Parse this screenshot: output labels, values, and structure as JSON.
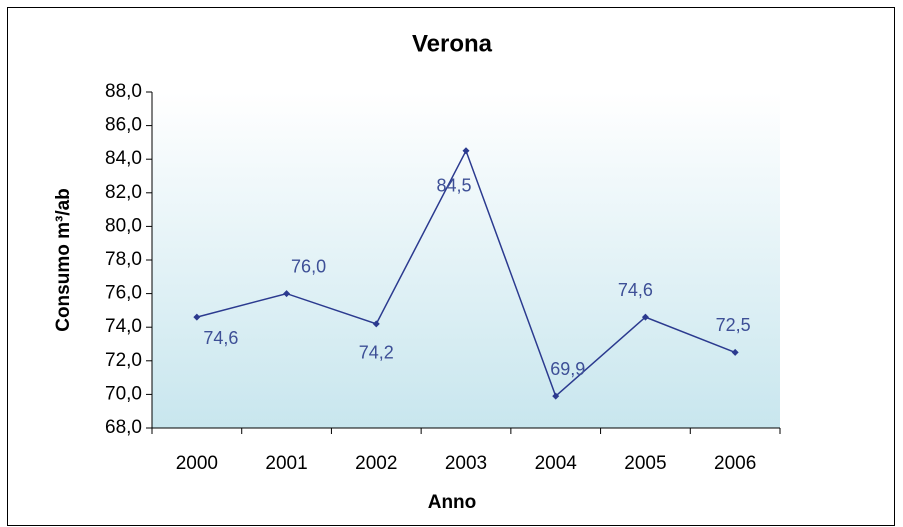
{
  "chart_data": {
    "type": "line",
    "title": "Verona",
    "x_label": "Anno",
    "y_label": "Consumo m³/ab",
    "categories": [
      "2000",
      "2001",
      "2002",
      "2003",
      "2004",
      "2005",
      "2006"
    ],
    "series": [
      {
        "name": "Verona",
        "color": "#2b3a8f",
        "values": [
          74.6,
          76.0,
          74.2,
          84.5,
          69.9,
          74.6,
          72.5
        ],
        "value_labels": [
          "74,6",
          "76,0",
          "74,2",
          "84,5",
          "69,9",
          "74,6",
          "72,5"
        ]
      }
    ],
    "ylim": [
      68,
      88
    ],
    "yticks": [
      {
        "value": 68,
        "label": "68,0"
      },
      {
        "value": 70,
        "label": "70,0"
      },
      {
        "value": 72,
        "label": "72,0"
      },
      {
        "value": 74,
        "label": "74,0"
      },
      {
        "value": 76,
        "label": "76,0"
      },
      {
        "value": 78,
        "label": "78,0"
      },
      {
        "value": 80,
        "label": "80,0"
      },
      {
        "value": 82,
        "label": "82,0"
      },
      {
        "value": 84,
        "label": "84,0"
      },
      {
        "value": 86,
        "label": "86,0"
      },
      {
        "value": 88,
        "label": "88,0"
      }
    ],
    "grid": false
  }
}
